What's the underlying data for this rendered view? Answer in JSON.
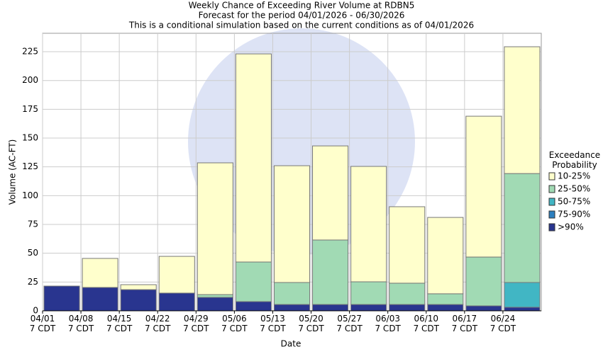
{
  "chart_data": {
    "type": "stacked-bar",
    "title": "Weekly Chance of Exceeding River Volume at RDBN5",
    "subtitle": "Forecast for the period 04/01/2026 - 06/30/2026",
    "note": "This is a conditional simulation based on the current conditions as of 04/01/2026",
    "x_label": "Date",
    "y_label": "Volume (AC-FT)",
    "legend_title": "Exceedance\nProbability",
    "legend": "right",
    "categories": [
      "04/01\n7 CDT",
      "04/08\n7 CDT",
      "04/15\n7 CDT",
      "04/22\n7 CDT",
      "04/29\n7 CDT",
      "05/06\n7 CDT",
      "05/13\n7 CDT",
      "05/20\n7 CDT",
      "05/27\n7 CDT",
      "06/03\n7 CDT",
      "06/10\n7 CDT",
      "06/17\n7 CDT",
      "06/24\n7 CDT"
    ],
    "series": [
      {
        "name": ">90%",
        "color": "#29358f",
        "values": [
          21.5,
          20.3,
          18.4,
          15.4,
          11.7,
          8,
          5.5,
          5.5,
          5.5,
          5.5,
          5.5,
          4.3,
          3.1
        ]
      },
      {
        "name": "75-90%",
        "color": "#2c7fbf",
        "values": [
          0,
          0,
          0,
          0,
          0,
          0,
          0,
          0,
          0,
          0,
          0,
          0,
          0
        ]
      },
      {
        "name": "50-75%",
        "color": "#41b6c4",
        "values": [
          0,
          0,
          0,
          0,
          0,
          0,
          0,
          0,
          0,
          0,
          0,
          0,
          21.5
        ]
      },
      {
        "name": "25-50%",
        "color": "#a1dab4",
        "values": [
          0,
          0,
          0,
          0,
          2.4,
          34.4,
          19.1,
          56,
          19.7,
          18.5,
          9.3,
          42.4,
          94.6
        ]
      },
      {
        "name": "10-25%",
        "color": "#ffffcc",
        "values": [
          0,
          25.2,
          4.3,
          31.9,
          114.4,
          180.7,
          101.4,
          81.7,
          100.2,
          66.4,
          66.3,
          122.3,
          110.1
        ]
      }
    ],
    "ylim": [
      0,
      241
    ],
    "yticks": [
      0,
      25,
      50,
      75,
      100,
      125,
      150,
      175,
      200,
      225
    ],
    "grid": true
  }
}
